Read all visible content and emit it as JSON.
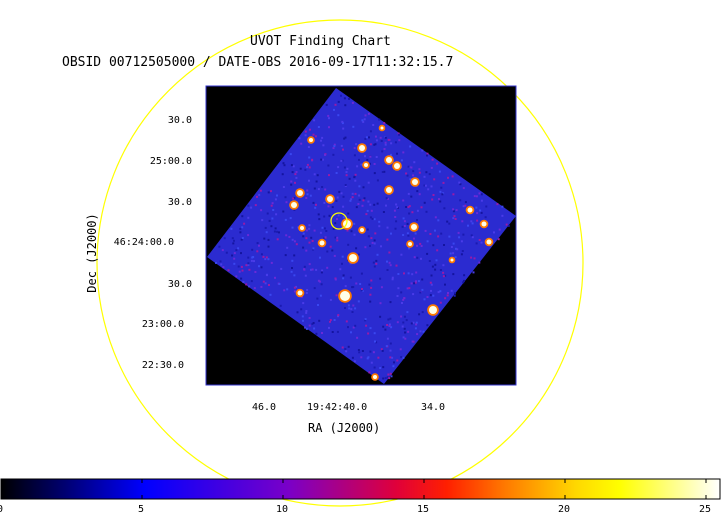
{
  "chart": {
    "title": "UVOT Finding Chart",
    "subtitle": "OBSID 00712505000 / DATE-OBS 2016-09-17T11:32:15.7",
    "xlabel": "RA (J2000)",
    "ylabel": "Dec (J2000)",
    "ra_ticks": [
      "46.0",
      "19:42:40.0",
      "34.0"
    ],
    "dec_ticks": [
      "30.0",
      "25:00.0",
      "30.0",
      "46:24:00.0",
      "30.0",
      "23:00.0",
      "22:30.0"
    ]
  },
  "colorbar": {
    "ticks": [
      "0",
      "5",
      "10",
      "15",
      "20",
      "25"
    ],
    "min": 0,
    "max": 25.5
  },
  "colors": {
    "circle": "#ffff00",
    "frame_border": "#3333cc",
    "background_sky": "#2b2bd0",
    "outside_field": "#000000"
  }
}
